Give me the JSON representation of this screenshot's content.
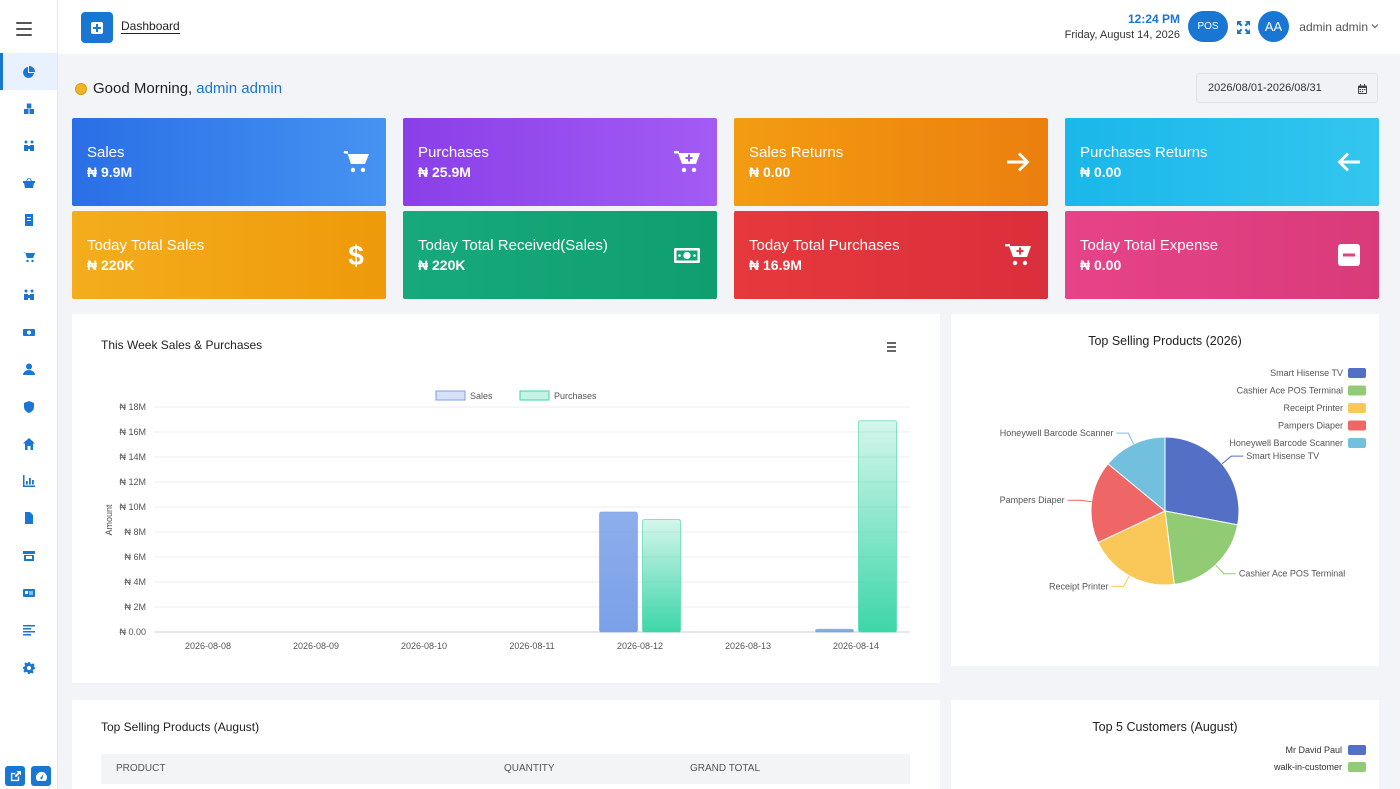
{
  "topbar": {
    "breadcrumb": "Dashboard",
    "time": "12:24 PM",
    "date": "Friday, August 14, 2026",
    "pos_label": "POS",
    "avatar_initials": "AA",
    "user_name": "admin admin"
  },
  "greeting": {
    "text": "Good Morning,",
    "name": "admin admin"
  },
  "date_range": "2026/08/01-2026/08/31",
  "cards": [
    {
      "label": "Sales",
      "value": "₦ 9.9M",
      "icon": "cart-icon",
      "color": "#2f74e6"
    },
    {
      "label": "Purchases",
      "value": "₦ 25.9M",
      "icon": "cart-plus-icon",
      "color": "#8e44ec"
    },
    {
      "label": "Sales Returns",
      "value": "₦ 0.00",
      "icon": "arrow-right-icon",
      "color": "#f0860f"
    },
    {
      "label": "Purchases Returns",
      "value": "₦ 0.00",
      "icon": "arrow-left-icon",
      "color": "#1ebbe8"
    },
    {
      "label": "Today Total Sales",
      "value": "₦ 220K",
      "icon": "dollar-icon",
      "color": "#f2a40e"
    },
    {
      "label": "Today Total Received(Sales)",
      "value": "₦ 220K",
      "icon": "money-icon",
      "color": "#14a97b"
    },
    {
      "label": "Today Total Purchases",
      "value": "₦ 16.9M",
      "icon": "cart-plus-icon",
      "color": "#e3373d"
    },
    {
      "label": "Today Total Expense",
      "value": "₦ 0.00",
      "icon": "minus-square-icon",
      "color": "#e0407f"
    }
  ],
  "week_chart": {
    "title": "This Week Sales & Purchases"
  },
  "pie_panel": {
    "title": "Top Selling Products (2026)"
  },
  "table_panel": {
    "title": "Top Selling Products (August)",
    "columns": [
      "PRODUCT",
      "QUANTITY",
      "GRAND TOTAL"
    ]
  },
  "customers_panel": {
    "title": "Top 5 Customers (August)",
    "legend": [
      {
        "name": "Mr David Paul",
        "color": "#5470c6"
      },
      {
        "name": "walk-in-customer",
        "color": "#91cc75"
      }
    ]
  },
  "chart_data": [
    {
      "type": "bar",
      "title": "This Week Sales & Purchases",
      "ylabel": "Amount",
      "xlabel": "",
      "ylim": [
        0,
        18000000
      ],
      "yticks": [
        "₦ 0.00",
        "₦ 2M",
        "₦ 4M",
        "₦ 6M",
        "₦ 8M",
        "₦ 10M",
        "₦ 12M",
        "₦ 14M",
        "₦ 16M",
        "₦ 18M"
      ],
      "categories": [
        "2026-08-08",
        "2026-08-09",
        "2026-08-10",
        "2026-08-11",
        "2026-08-12",
        "2026-08-13",
        "2026-08-14"
      ],
      "legend_position": "top",
      "series": [
        {
          "name": "Sales",
          "values": [
            0,
            0,
            0,
            0,
            9600000,
            0,
            220000
          ],
          "color": "#7aa0e8"
        },
        {
          "name": "Purchases",
          "values": [
            0,
            0,
            0,
            0,
            9000000,
            0,
            16900000
          ],
          "color": "#3dd6a8"
        }
      ]
    },
    {
      "type": "pie",
      "title": "Top Selling Products (2026)",
      "legend_position": "right",
      "slices": [
        {
          "name": "Smart Hisense TV",
          "value": 28,
          "color": "#5470c6"
        },
        {
          "name": "Cashier Ace POS Terminal",
          "value": 20,
          "color": "#91cc75"
        },
        {
          "name": "Receipt Printer",
          "value": 20,
          "color": "#fac858"
        },
        {
          "name": "Pampers Diaper",
          "value": 18,
          "color": "#ee6666"
        },
        {
          "name": "Honeywell Barcode Scanner",
          "value": 14,
          "color": "#73c0de"
        }
      ]
    }
  ]
}
